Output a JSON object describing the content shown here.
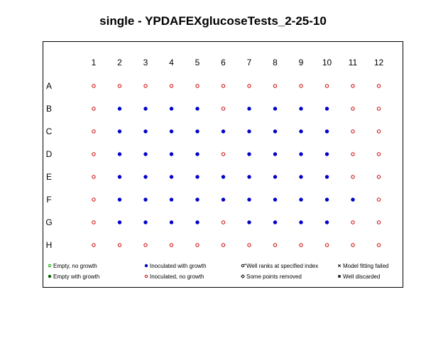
{
  "chart_data": {
    "type": "scatter",
    "title": "single - YPDAFEXglucoseTests_2-25-10",
    "columns": [
      "1",
      "2",
      "3",
      "4",
      "5",
      "6",
      "7",
      "8",
      "9",
      "10",
      "11",
      "12"
    ],
    "rows": [
      "A",
      "B",
      "C",
      "D",
      "E",
      "F",
      "G",
      "H"
    ],
    "wells": [
      [
        "inoc_no_growth",
        "inoc_no_growth",
        "inoc_no_growth",
        "inoc_no_growth",
        "inoc_no_growth",
        "inoc_no_growth",
        "inoc_no_growth",
        "inoc_no_growth",
        "inoc_no_growth",
        "inoc_no_growth",
        "inoc_no_growth",
        "inoc_no_growth"
      ],
      [
        "inoc_no_growth",
        "inoc_growth",
        "inoc_growth",
        "inoc_growth",
        "inoc_growth",
        "inoc_no_growth",
        "inoc_growth",
        "inoc_growth",
        "inoc_growth",
        "inoc_growth",
        "inoc_no_growth",
        "inoc_no_growth"
      ],
      [
        "inoc_no_growth",
        "inoc_growth",
        "inoc_growth",
        "inoc_growth",
        "inoc_growth",
        "inoc_growth",
        "inoc_growth",
        "inoc_growth",
        "inoc_growth",
        "inoc_growth",
        "inoc_no_growth",
        "inoc_no_growth"
      ],
      [
        "inoc_no_growth",
        "inoc_growth",
        "inoc_growth",
        "inoc_growth",
        "inoc_growth",
        "inoc_no_growth",
        "inoc_growth",
        "inoc_growth",
        "inoc_growth",
        "inoc_growth",
        "inoc_no_growth",
        "inoc_no_growth"
      ],
      [
        "inoc_no_growth",
        "inoc_growth",
        "inoc_growth",
        "inoc_growth",
        "inoc_growth",
        "inoc_growth",
        "inoc_growth",
        "inoc_growth",
        "inoc_growth",
        "inoc_growth",
        "inoc_no_growth",
        "inoc_no_growth"
      ],
      [
        "inoc_no_growth",
        "inoc_growth",
        "inoc_growth",
        "inoc_growth",
        "inoc_growth",
        "inoc_growth",
        "inoc_growth",
        "inoc_growth",
        "inoc_growth",
        "inoc_growth",
        "inoc_growth",
        "inoc_no_growth"
      ],
      [
        "inoc_no_growth",
        "inoc_growth",
        "inoc_growth",
        "inoc_growth",
        "inoc_growth",
        "inoc_no_growth",
        "inoc_growth",
        "inoc_growth",
        "inoc_growth",
        "inoc_growth",
        "inoc_no_growth",
        "inoc_no_growth"
      ],
      [
        "inoc_no_growth",
        "inoc_no_growth",
        "inoc_no_growth",
        "inoc_no_growth",
        "inoc_no_growth",
        "inoc_no_growth",
        "inoc_no_growth",
        "inoc_no_growth",
        "inoc_no_growth",
        "inoc_no_growth",
        "inoc_no_growth",
        "inoc_no_growth"
      ]
    ],
    "legend": [
      {
        "key": "empty_no_growth",
        "label": "Empty, no growth",
        "symbol": "open-circle",
        "color": "#00a000"
      },
      {
        "key": "empty_growth",
        "label": "Empty with growth",
        "symbol": "filled-circle",
        "color": "#006400"
      },
      {
        "key": "inoc_growth",
        "label": "Inoculated with growth",
        "symbol": "filled-circle",
        "color": "#0000cc"
      },
      {
        "key": "inoc_no_growth",
        "label": "Inoculated, no growth",
        "symbol": "open-circle",
        "color": "#cc0000"
      },
      {
        "key": "well_ranks",
        "label": "Well ranks at specified index",
        "symbol": "open-circle-star",
        "color": "#000000"
      },
      {
        "key": "points_removed",
        "label": "Some points removed",
        "symbol": "diamond",
        "color": "#000000"
      },
      {
        "key": "fit_failed",
        "label": "Model fitting failed",
        "symbol": "cross",
        "color": "#000000"
      },
      {
        "key": "discarded",
        "label": "Well discarded",
        "symbol": "asterisk",
        "color": "#000000"
      }
    ],
    "legend_placement": "bottom",
    "grid": false
  }
}
